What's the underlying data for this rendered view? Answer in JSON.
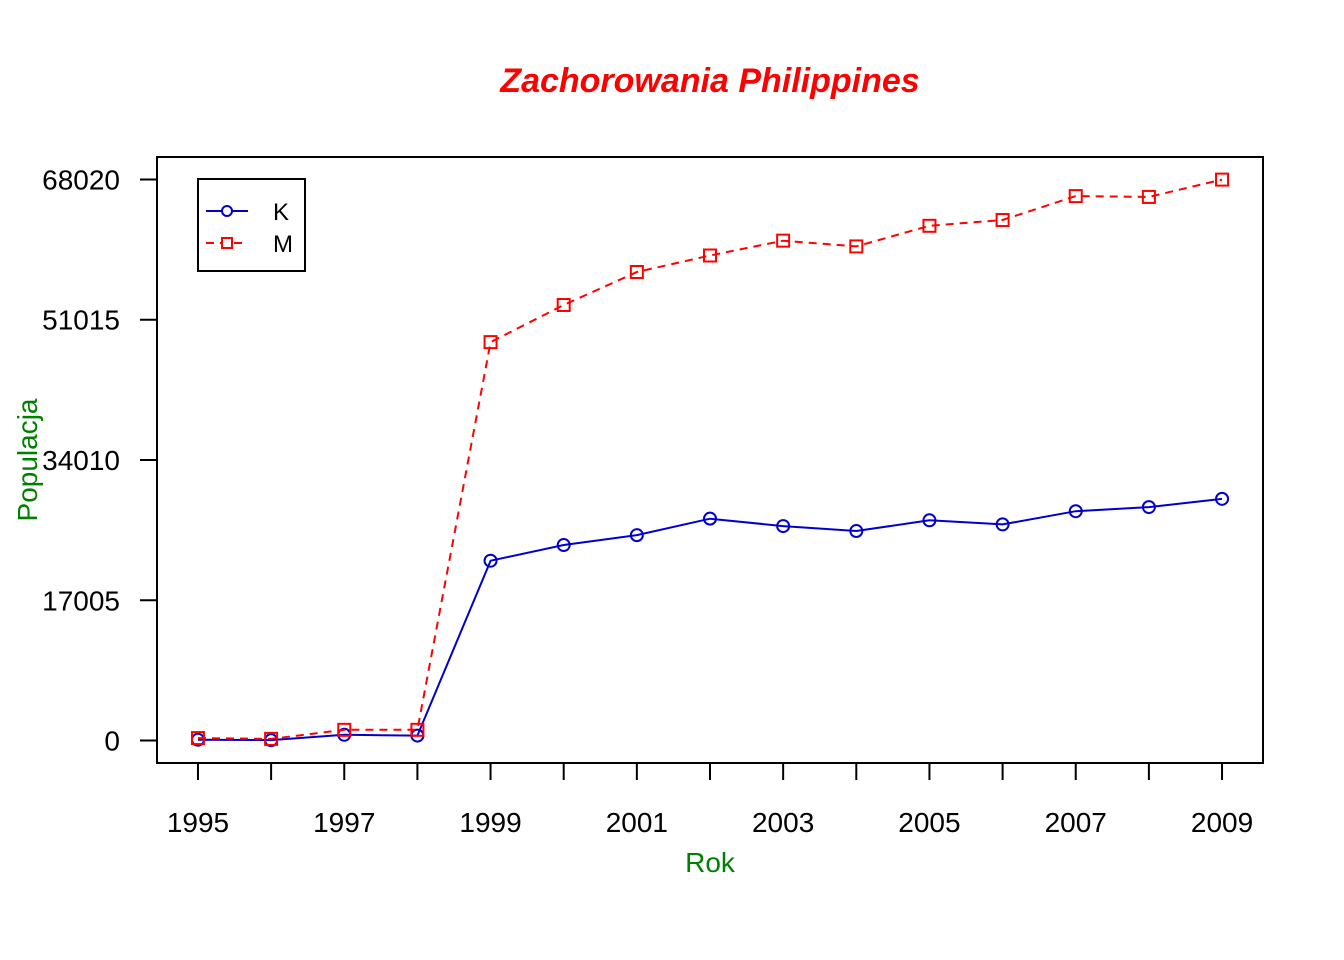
{
  "chart_data": {
    "type": "line",
    "title": "Zachorowania Philippines",
    "title_color": "#ff0000",
    "xlabel": "Rok",
    "ylabel": "Populacja",
    "label_color": "#008000",
    "x": [
      1995,
      1996,
      1997,
      1998,
      1999,
      2000,
      2001,
      2002,
      2003,
      2004,
      2005,
      2006,
      2007,
      2008,
      2009
    ],
    "x_ticks": [
      "1995",
      "1997",
      "1999",
      "2001",
      "2003",
      "2005",
      "2007",
      "2009"
    ],
    "y_ticks": [
      "0",
      "17005",
      "34010",
      "51015",
      "68020"
    ],
    "xlim": [
      1994.44,
      2009.56
    ],
    "ylim": [
      -2721,
      70741
    ],
    "grid": false,
    "legend_position": "top-left",
    "series": [
      {
        "name": "K",
        "color": "#0000cd",
        "line_style": "solid",
        "marker": "circle",
        "values": [
          100,
          50,
          700,
          600,
          21800,
          23700,
          24900,
          26900,
          26000,
          25400,
          26700,
          26200,
          27800,
          28300,
          29300
        ]
      },
      {
        "name": "M",
        "color": "#ff0000",
        "line_style": "dashed",
        "marker": "square",
        "values": [
          300,
          200,
          1300,
          1300,
          48300,
          52800,
          56800,
          58800,
          60600,
          59900,
          62400,
          63100,
          66000,
          65900,
          68000
        ]
      }
    ]
  }
}
